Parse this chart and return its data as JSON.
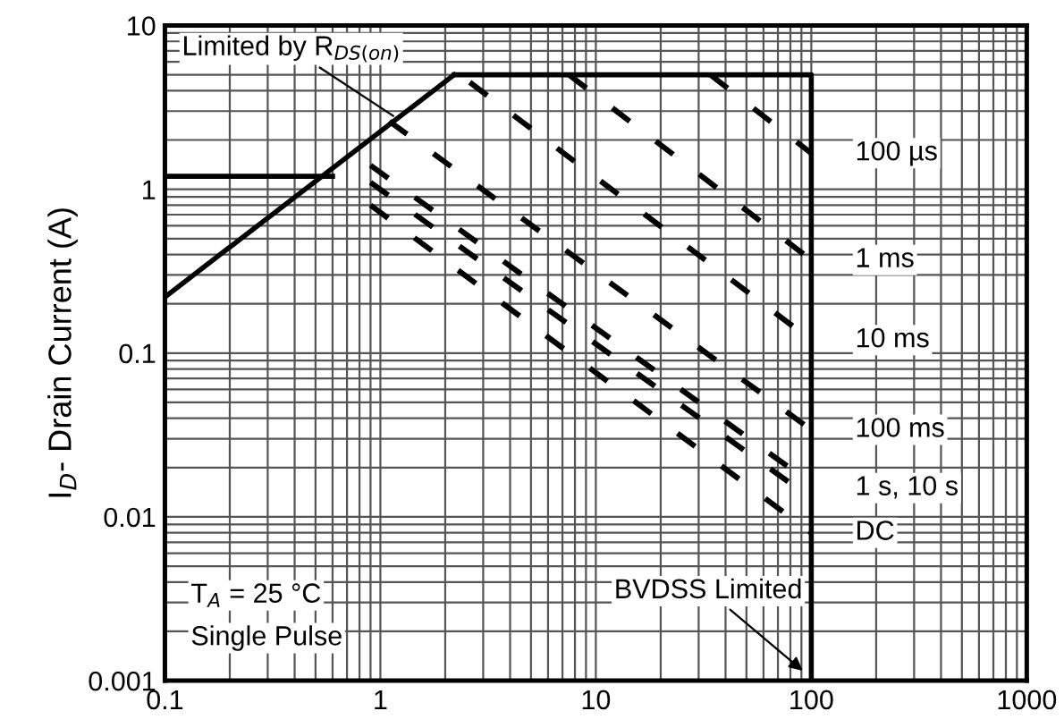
{
  "chart_data": {
    "type": "line",
    "ylabel": "I$_{D}$- Drain Current (A)",
    "log": "xy",
    "grid": true,
    "xlim": [
      0.1,
      1000
    ],
    "xticks": [
      0.1,
      1,
      10,
      100,
      1000
    ],
    "ylim": [
      0.001,
      10
    ],
    "yticks": [
      0.001,
      0.01,
      0.1,
      1,
      10
    ],
    "series": [
      {
        "color": "#000000",
        "line_style": "solid",
        "x": [
          0.1,
          2.2
        ],
        "values": [
          0.22,
          5
        ]
      },
      {
        "color": "#000000",
        "line_style": "solid",
        "x": [
          0.1,
          0.6
        ],
        "values": [
          1.2,
          1.2
        ]
      },
      {
        "color": "#000000",
        "line_style": "solid",
        "x": [
          2.2,
          100,
          100
        ],
        "values": [
          5,
          5,
          0.001
        ]
      },
      {
        "color": "#000000",
        "line_style": "dashed",
        "x": [
          34,
          100
        ],
        "values": [
          5,
          1.66
        ]
      },
      {
        "color": "#000000",
        "line_style": "dashed",
        "x": [
          7.5,
          100
        ],
        "values": [
          5,
          0.37
        ]
      },
      {
        "color": "#000000",
        "line_style": "dashed",
        "x": [
          2.6,
          100
        ],
        "values": [
          4.5,
          0.12
        ]
      },
      {
        "color": "#000000",
        "line_style": "dashed",
        "x": [
          1.1,
          100
        ],
        "values": [
          2.6,
          0.034
        ]
      },
      {
        "color": "#000000",
        "line_style": "dashed",
        "x": [
          0.9,
          100
        ],
        "values": [
          1.4,
          0.016
        ]
      },
      {
        "color": "#000000",
        "line_style": "dashed",
        "x": [
          0.9,
          100
        ],
        "values": [
          1.1,
          0.013
        ]
      },
      {
        "color": "#000000",
        "line_style": "dashed",
        "x": [
          0.9,
          100
        ],
        "values": [
          0.8,
          0.008
        ]
      }
    ],
    "annotations": [
      {
        "text": "Limited by R$_{DS(on)}$",
        "x": 1.2,
        "y": 2.7
      },
      {
        "text": "100 µs",
        "x": 100,
        "y": 1.66
      },
      {
        "text": "1 ms",
        "x": 100,
        "y": 0.37
      },
      {
        "text": "10 ms",
        "x": 100,
        "y": 0.12
      },
      {
        "text": "100 ms",
        "x": 100,
        "y": 0.034
      },
      {
        "text": "1 s, 10 s",
        "x": 100,
        "y": 0.015
      },
      {
        "text": "DC",
        "x": 100,
        "y": 0.008
      },
      {
        "text": "BVDSS Limited",
        "x": 95,
        "y": 0.0011
      },
      "T$_{A}$ = 25 °C",
      "Single Pulse"
    ]
  }
}
